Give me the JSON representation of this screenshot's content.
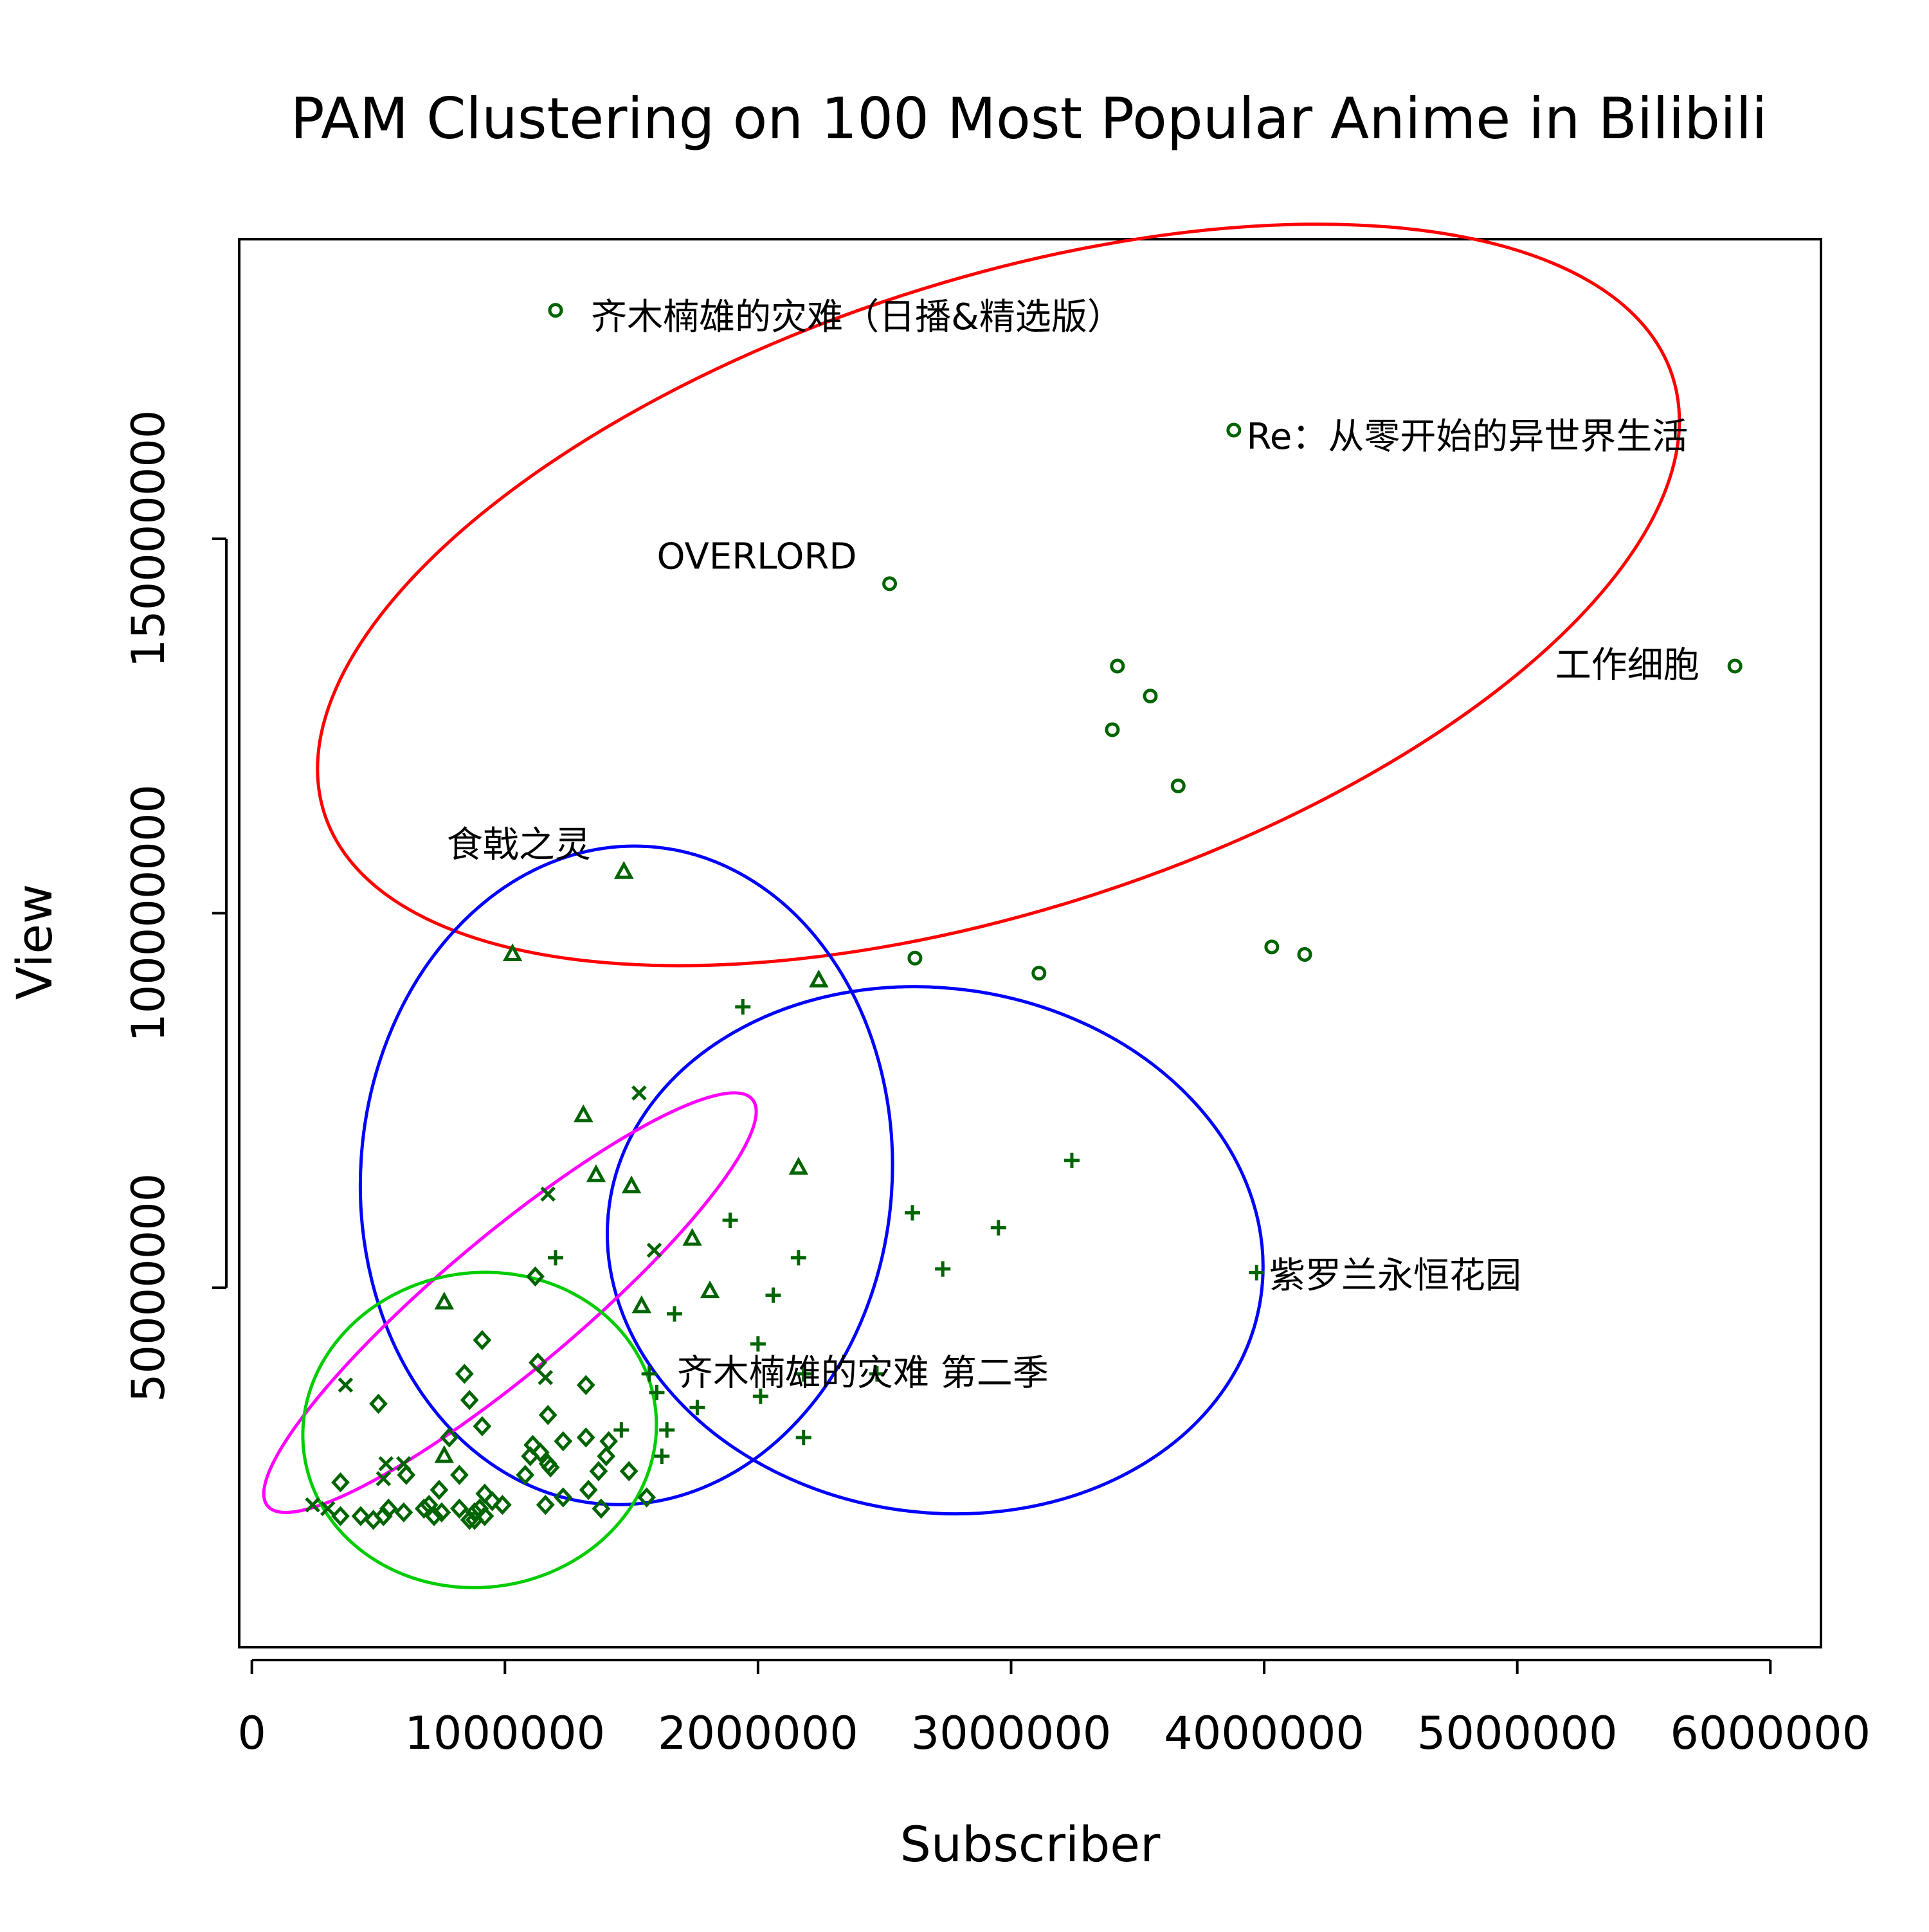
{
  "chart_data": {
    "type": "scatter",
    "title": "PAM Clustering on 100 Most Popular Anime in Bilibili",
    "xlabel": "Subscriber",
    "ylabel": "View",
    "xlim": [
      -50000,
      6200000
    ],
    "ylim": [
      2000000,
      190000000
    ],
    "xticks": [
      0,
      1000000,
      2000000,
      3000000,
      4000000,
      5000000,
      6000000
    ],
    "xtick_labels": [
      "0",
      "1000000",
      "2000000",
      "3000000",
      "4000000",
      "5000000",
      "6000000"
    ],
    "yticks": [
      50000000,
      100000000,
      150000000
    ],
    "ytick_labels": [
      "50000000",
      "100000000",
      "150000000"
    ],
    "grid": false,
    "point_color": "#006400",
    "clusters": [
      {
        "marker": "circle",
        "ellipse_color": "#ff0000",
        "ellipse": {
          "cx": 2950000,
          "cy": 142500000,
          "rx": 2800000,
          "ry": 42000000,
          "angle": -18
        },
        "points": [
          [
            1200000,
            180500000
          ],
          [
            3880000,
            164500000
          ],
          [
            2520000,
            144000000
          ],
          [
            5860000,
            133000000
          ],
          [
            3420000,
            133000000
          ],
          [
            3550000,
            129000000
          ],
          [
            3400000,
            124500000
          ],
          [
            3660000,
            117000000
          ],
          [
            2620000,
            94000000
          ],
          [
            3110000,
            92000000
          ],
          [
            4030000,
            95500000
          ],
          [
            4160000,
            94500000
          ]
        ]
      },
      {
        "marker": "triangle",
        "ellipse_color": "#0000ff",
        "ellipse": {
          "cx": 1480000,
          "cy": 65000000,
          "rx": 1050000,
          "ry": 44000000,
          "angle": 4
        },
        "points": [
          [
            1470000,
            105500000
          ],
          [
            1030000,
            94500000
          ],
          [
            2240000,
            91000000
          ],
          [
            1310000,
            73000000
          ],
          [
            2160000,
            66000000
          ],
          [
            1360000,
            65000000
          ],
          [
            1500000,
            63500000
          ],
          [
            1740000,
            56500000
          ],
          [
            1810000,
            49500000
          ],
          [
            1540000,
            47500000
          ],
          [
            760000,
            48000000
          ],
          [
            760000,
            27500000
          ]
        ]
      },
      {
        "marker": "plus",
        "ellipse_color": "#0000ff",
        "ellipse": {
          "cx": 2700000,
          "cy": 55000000,
          "rx": 1300000,
          "ry": 35000000,
          "angle": 8
        },
        "points": [
          [
            3970000,
            52000000
          ],
          [
            3240000,
            67000000
          ],
          [
            2610000,
            60000000
          ],
          [
            2950000,
            58000000
          ],
          [
            2730000,
            52500000
          ],
          [
            1940000,
            87500000
          ],
          [
            1890000,
            59000000
          ],
          [
            2160000,
            54000000
          ],
          [
            1200000,
            54000000
          ],
          [
            2060000,
            49000000
          ],
          [
            1670000,
            46500000
          ],
          [
            2000000,
            42500000
          ],
          [
            1570000,
            38500000
          ],
          [
            1600000,
            36000000
          ],
          [
            2180000,
            38500000
          ],
          [
            2470000,
            38500000
          ],
          [
            2010000,
            35500000
          ],
          [
            1760000,
            34000000
          ],
          [
            1640000,
            31000000
          ],
          [
            2180000,
            30000000
          ],
          [
            1620000,
            27500000
          ],
          [
            1460000,
            31000000
          ]
        ]
      },
      {
        "marker": "cross",
        "ellipse_color": "#ff00ff",
        "ellipse": {
          "cx": 1020000,
          "cy": 48000000,
          "rx": 1250000,
          "ry": 9000000,
          "angle": -40
        },
        "points": [
          [
            1530000,
            76000000
          ],
          [
            1170000,
            62500000
          ],
          [
            1590000,
            55000000
          ],
          [
            370000,
            37000000
          ],
          [
            1160000,
            38000000
          ],
          [
            530000,
            26500000
          ],
          [
            600000,
            26500000
          ],
          [
            520000,
            24500000
          ],
          [
            240000,
            21000000
          ],
          [
            300000,
            20500000
          ]
        ]
      },
      {
        "marker": "diamond",
        "ellipse_color": "#00cc00",
        "ellipse": {
          "cx": 900000,
          "cy": 31000000,
          "rx": 700000,
          "ry": 21000000,
          "angle": -8
        },
        "points": [
          [
            1120000,
            51500000
          ],
          [
            910000,
            43000000
          ],
          [
            840000,
            38500000
          ],
          [
            1130000,
            40000000
          ],
          [
            1320000,
            37000000
          ],
          [
            500000,
            34500000
          ],
          [
            860000,
            35000000
          ],
          [
            1170000,
            33000000
          ],
          [
            910000,
            31500000
          ],
          [
            1320000,
            30000000
          ],
          [
            1410000,
            29500000
          ],
          [
            1230000,
            29500000
          ],
          [
            1110000,
            29000000
          ],
          [
            780000,
            30000000
          ],
          [
            1140000,
            28000000
          ],
          [
            1400000,
            27500000
          ],
          [
            1100000,
            27500000
          ],
          [
            1170000,
            26500000
          ],
          [
            1180000,
            26000000
          ],
          [
            1490000,
            25500000
          ],
          [
            1080000,
            25000000
          ],
          [
            1370000,
            25500000
          ],
          [
            820000,
            25000000
          ],
          [
            610000,
            25000000
          ],
          [
            350000,
            24000000
          ],
          [
            1330000,
            23000000
          ],
          [
            1230000,
            22000000
          ],
          [
            1560000,
            22000000
          ],
          [
            1160000,
            21000000
          ],
          [
            1380000,
            20500000
          ],
          [
            920000,
            22500000
          ],
          [
            740000,
            23000000
          ],
          [
            700000,
            21000000
          ],
          [
            950000,
            21500000
          ],
          [
            990000,
            21000000
          ],
          [
            900000,
            20500000
          ],
          [
            540000,
            20500000
          ],
          [
            680000,
            20500000
          ],
          [
            880000,
            20000000
          ],
          [
            750000,
            20000000
          ],
          [
            820000,
            20500000
          ],
          [
            600000,
            20000000
          ],
          [
            430000,
            19500000
          ],
          [
            350000,
            19500000
          ],
          [
            860000,
            19000000
          ],
          [
            480000,
            19000000
          ],
          [
            520000,
            19500000
          ],
          [
            720000,
            19500000
          ],
          [
            880000,
            19000000
          ],
          [
            920000,
            19500000
          ]
        ]
      }
    ],
    "annotations": [
      {
        "text": "齐木楠雄的灾难（日播&精选版）",
        "x": 1340000,
        "y": 178000000
      },
      {
        "text": "Re：从零开始的异世界生活",
        "x": 3930000,
        "y": 162000000
      },
      {
        "text": "OVERLORD",
        "x": 1600000,
        "y": 146000000
      },
      {
        "text": "工作细胞",
        "x": 5150000,
        "y": 131500000
      },
      {
        "text": "食戟之灵",
        "x": 770000,
        "y": 107500000
      },
      {
        "text": "紫罗兰永恒花园",
        "x": 4020000,
        "y": 50000000
      },
      {
        "text": "齐木楠雄的灾难 第二季",
        "x": 1680000,
        "y": 37000000
      }
    ]
  }
}
